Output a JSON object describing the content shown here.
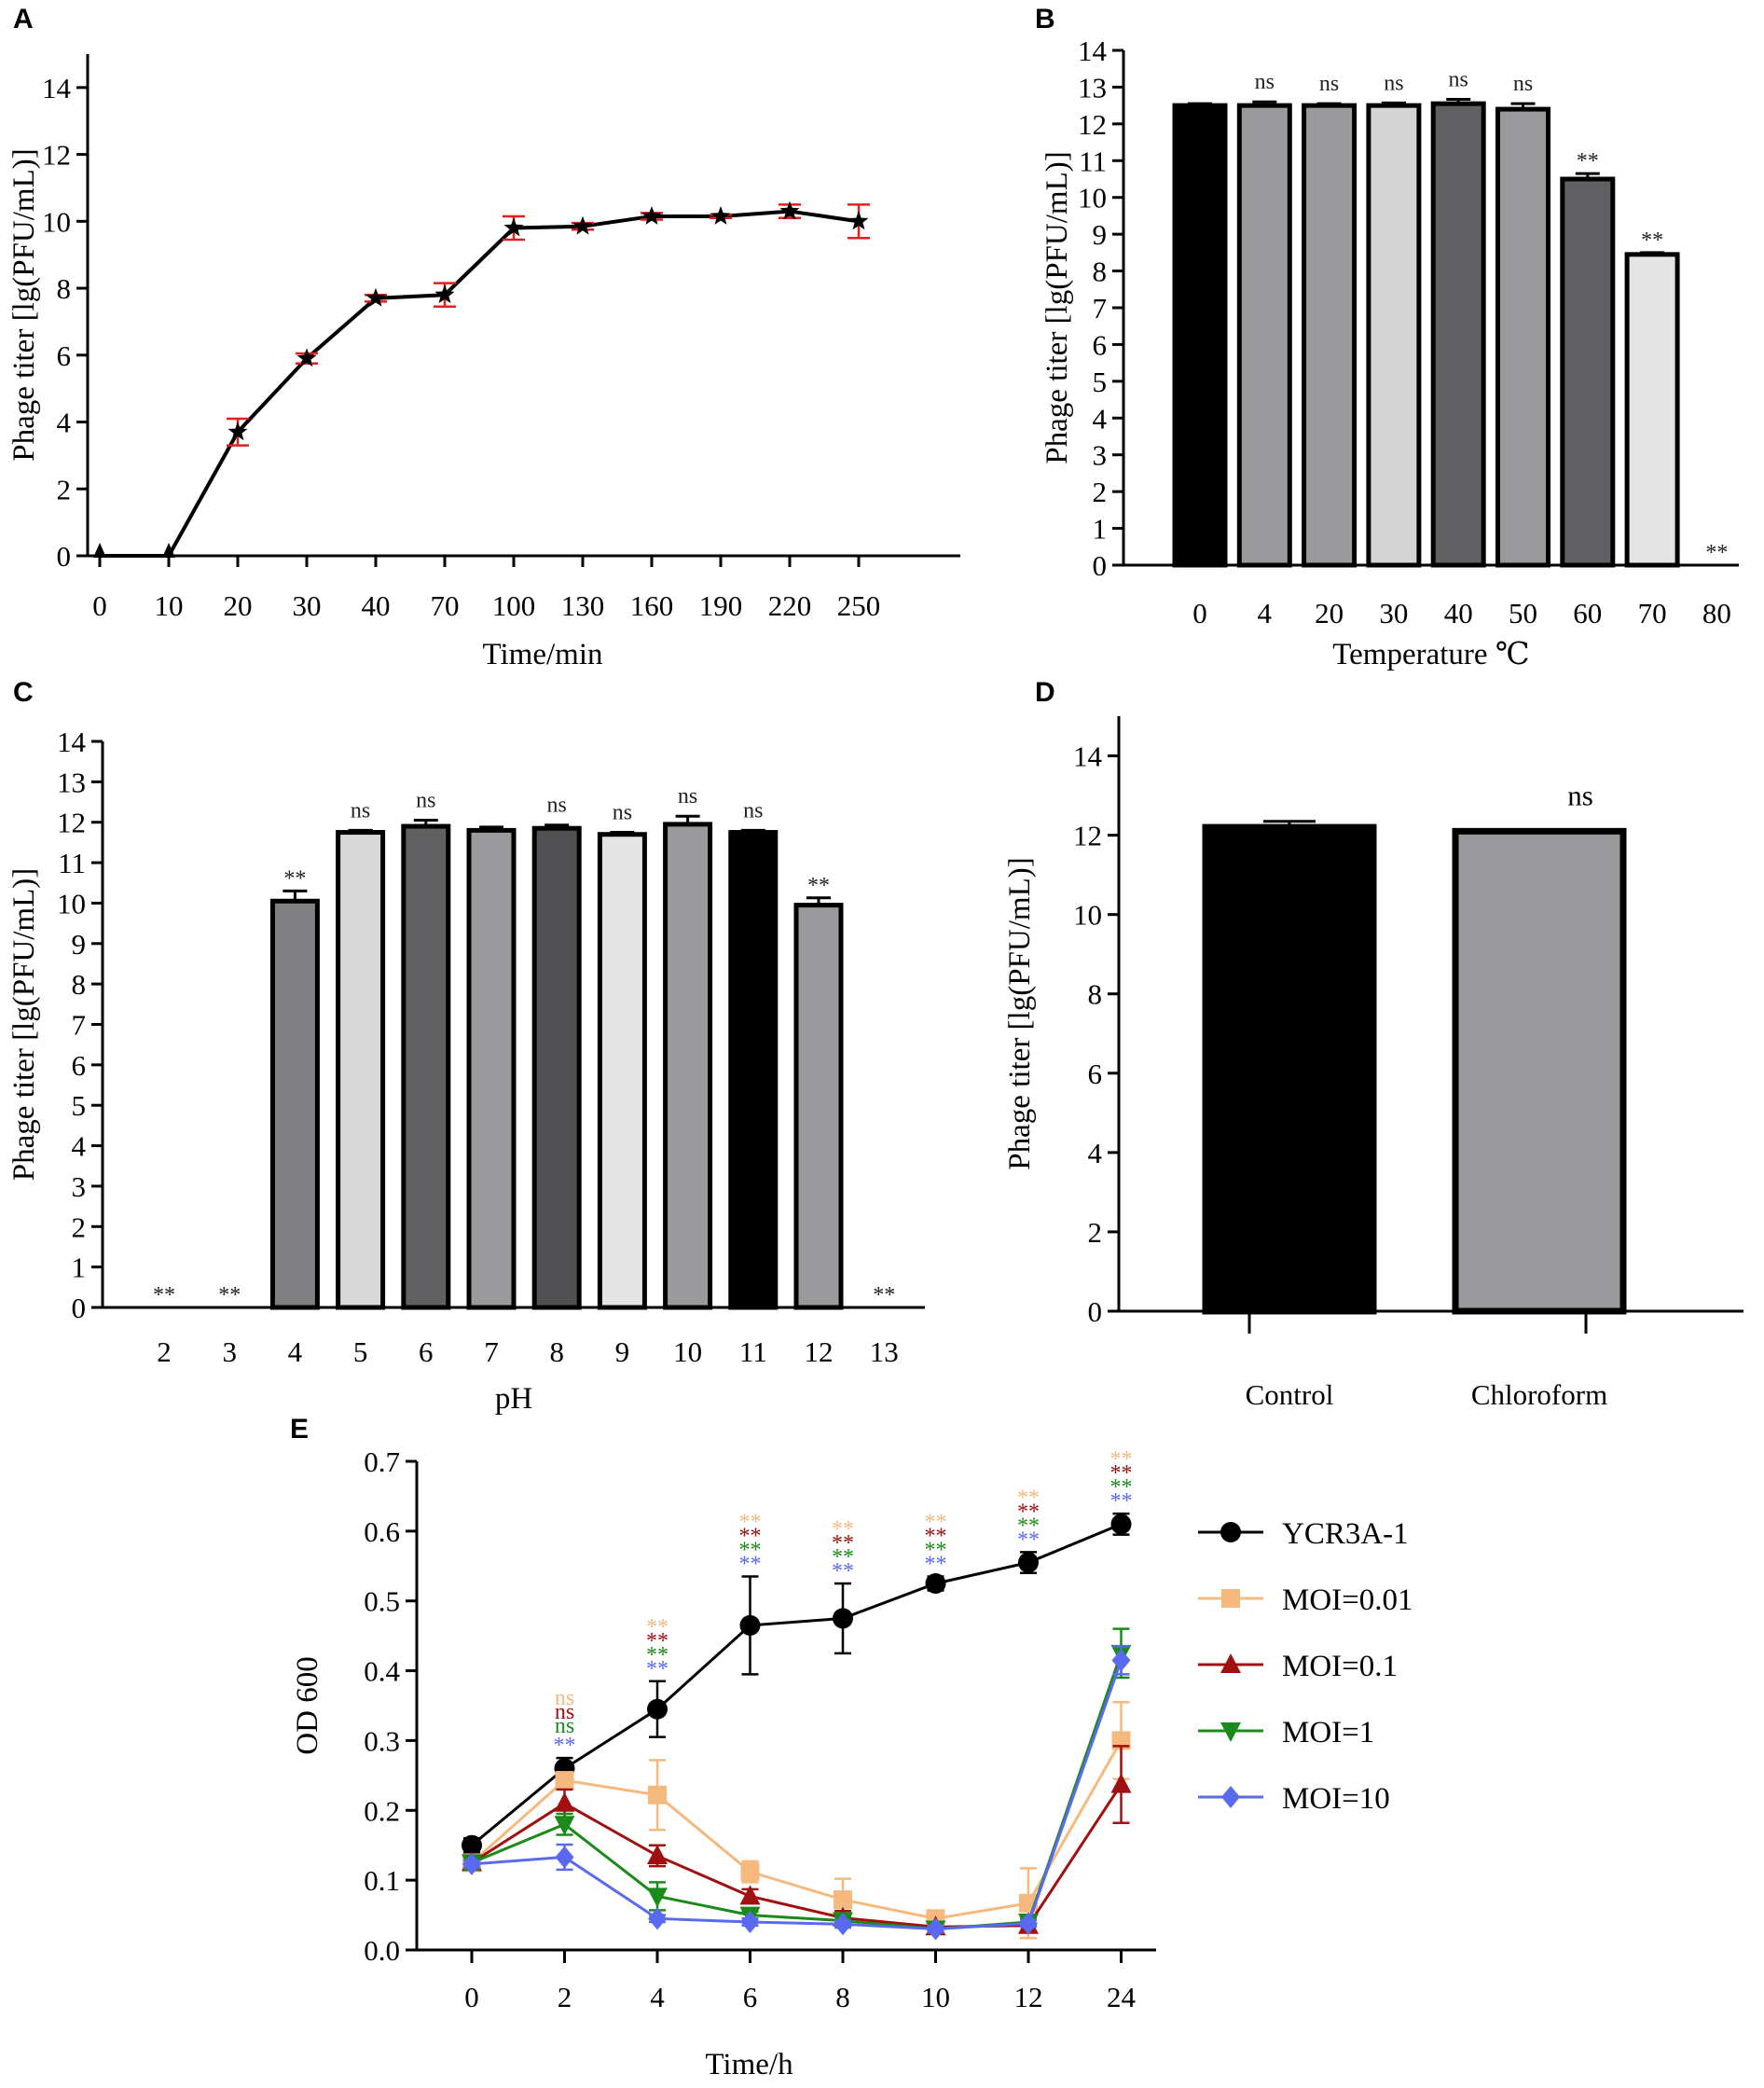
{
  "chart_data": [
    {
      "panel": "A",
      "type": "line",
      "xlabel": "Time/min",
      "ylabel": "Phage titer [lg(PFU/mL)]",
      "ylim": [
        0,
        15
      ],
      "yticks": [
        "0",
        "2",
        "4",
        "6",
        "8",
        "10",
        "12",
        "14"
      ],
      "categories": [
        "0",
        "10",
        "20",
        "30",
        "40",
        "70",
        "100",
        "130",
        "160",
        "190",
        "220",
        "250"
      ],
      "values": [
        0,
        0,
        3.7,
        5.9,
        7.7,
        7.8,
        9.8,
        9.85,
        10.15,
        10.15,
        10.3,
        10.0
      ],
      "errors": [
        0,
        0,
        0.4,
        0.15,
        0.1,
        0.35,
        0.35,
        0.1,
        0.1,
        0.05,
        0.2,
        0.5
      ],
      "markers": [
        "arrow",
        "arrow",
        "star",
        "star",
        "star",
        "star",
        "star",
        "star",
        "star",
        "star",
        "star",
        "star"
      ],
      "line_color": "#000000",
      "error_color": "#e0201e"
    },
    {
      "panel": "B",
      "type": "bar",
      "xlabel": "Temperature ℃",
      "ylabel": "Phage titer [lg(PFU/mL)]",
      "ylim": [
        0,
        14
      ],
      "yticks": [
        "0",
        "1",
        "2",
        "3",
        "4",
        "5",
        "6",
        "7",
        "8",
        "9",
        "10",
        "11",
        "12",
        "13",
        "14"
      ],
      "categories": [
        "0",
        "4",
        "20",
        "30",
        "40",
        "50",
        "60",
        "70",
        "80"
      ],
      "values": [
        12.5,
        12.5,
        12.5,
        12.5,
        12.55,
        12.4,
        10.5,
        8.45,
        0
      ],
      "errors": [
        0.05,
        0.1,
        0.05,
        0.07,
        0.12,
        0.15,
        0.15,
        0.05,
        0
      ],
      "colors": [
        "#000000",
        "#9a9a9c",
        "#9a9a9c",
        "#d4d4d4",
        "#606062",
        "#9a9a9c",
        "#606062",
        "#e4e4e4",
        "#ffffff"
      ],
      "significance": [
        "",
        "ns",
        "ns",
        "ns",
        "ns",
        "ns",
        "**",
        "**",
        "**"
      ]
    },
    {
      "panel": "C",
      "type": "bar",
      "xlabel": "pH",
      "ylabel": "Phage titer [lg(PFU/mL)]",
      "ylim": [
        0,
        14
      ],
      "yticks": [
        "0",
        "1",
        "2",
        "3",
        "4",
        "5",
        "6",
        "7",
        "8",
        "9",
        "10",
        "11",
        "12",
        "13",
        "14"
      ],
      "categories": [
        "2",
        "3",
        "4",
        "5",
        "6",
        "7",
        "8",
        "9",
        "10",
        "11",
        "12",
        "13"
      ],
      "values": [
        0,
        0,
        10.05,
        11.75,
        11.9,
        11.8,
        11.85,
        11.7,
        11.95,
        11.75,
        9.95,
        0
      ],
      "errors": [
        0,
        0,
        0.25,
        0.05,
        0.15,
        0.08,
        0.08,
        0.05,
        0.2,
        0.05,
        0.18,
        0
      ],
      "colors": [
        "#ffffff",
        "#ffffff",
        "#808082",
        "#d8d8d8",
        "#606062",
        "#9a9a9c",
        "#505052",
        "#e4e4e4",
        "#9a9a9c",
        "#000000",
        "#9a9a9c",
        "#ffffff"
      ],
      "significance": [
        "**",
        "**",
        "**",
        "ns",
        "ns",
        "",
        "ns",
        "ns",
        "ns",
        "ns",
        "**",
        "**"
      ]
    },
    {
      "panel": "D",
      "type": "bar",
      "xlabel": "",
      "ylabel": "Phage titer [lg(PFU/mL)]",
      "ylim": [
        0,
        15
      ],
      "yticks": [
        "0",
        "2",
        "4",
        "6",
        "8",
        "10",
        "12",
        "14"
      ],
      "categories": [
        "Control",
        "Chloroform"
      ],
      "values": [
        12.2,
        12.1
      ],
      "errors": [
        0.15,
        0
      ],
      "colors": [
        "#000000",
        "#9a9a9c"
      ],
      "significance": [
        "",
        "ns"
      ]
    },
    {
      "panel": "E",
      "type": "line",
      "xlabel": "Time/h",
      "ylabel": "OD 600",
      "ylim": [
        0,
        0.7
      ],
      "yticks": [
        "0.0",
        "0.1",
        "0.2",
        "0.3",
        "0.4",
        "0.5",
        "0.6",
        "0.7"
      ],
      "categories": [
        "0",
        "2",
        "4",
        "6",
        "8",
        "10",
        "12",
        "24"
      ],
      "series": [
        {
          "name": "YCR3A-1",
          "color": "#000000",
          "marker": "circle",
          "values": [
            0.15,
            0.26,
            0.345,
            0.465,
            0.475,
            0.525,
            0.555,
            0.61
          ],
          "errors": [
            0.01,
            0.015,
            0.04,
            0.07,
            0.05,
            0.01,
            0.015,
            0.015
          ]
        },
        {
          "name": "MOI=0.01",
          "color": "#f5b97e",
          "marker": "square",
          "values": [
            0.125,
            0.243,
            0.222,
            0.112,
            0.072,
            0.045,
            0.067,
            0.3
          ],
          "errors": [
            0.01,
            0.01,
            0.05,
            0.015,
            0.03,
            0.01,
            0.05,
            0.055
          ]
        },
        {
          "name": "MOI=0.1",
          "color": "#a01010",
          "marker": "triangle-up",
          "values": [
            0.125,
            0.21,
            0.135,
            0.077,
            0.046,
            0.033,
            0.035,
            0.237
          ],
          "errors": [
            0.01,
            0.02,
            0.015,
            0.01,
            0.01,
            0.005,
            0.01,
            0.055
          ]
        },
        {
          "name": "MOI=1",
          "color": "#1a8a1a",
          "marker": "triangle-down",
          "values": [
            0.125,
            0.18,
            0.077,
            0.05,
            0.042,
            0.03,
            0.04,
            0.425
          ],
          "errors": [
            0.01,
            0.015,
            0.02,
            0.005,
            0.005,
            0.005,
            0.005,
            0.035
          ]
        },
        {
          "name": "MOI=10",
          "color": "#5a6af0",
          "marker": "diamond",
          "values": [
            0.123,
            0.133,
            0.045,
            0.04,
            0.037,
            0.03,
            0.038,
            0.415
          ],
          "errors": [
            0.005,
            0.018,
            0.005,
            0.005,
            0.005,
            0.005,
            0.005,
            0.02
          ]
        }
      ],
      "significance": [
        {
          "x": "2",
          "labels": [
            "ns",
            "ns",
            "ns",
            "**"
          ]
        },
        {
          "x": "4",
          "labels": [
            "**",
            "**",
            "**",
            "**"
          ]
        },
        {
          "x": "6",
          "labels": [
            "**",
            "**",
            "**",
            "**"
          ]
        },
        {
          "x": "8",
          "labels": [
            "**",
            "**",
            "**",
            "**"
          ]
        },
        {
          "x": "10",
          "labels": [
            "**",
            "**",
            "**",
            "**"
          ]
        },
        {
          "x": "12",
          "labels": [
            "**",
            "**",
            "**",
            "**"
          ]
        },
        {
          "x": "24",
          "labels": [
            "**",
            "**",
            "**",
            "**"
          ]
        }
      ],
      "legend_position": "right"
    }
  ]
}
